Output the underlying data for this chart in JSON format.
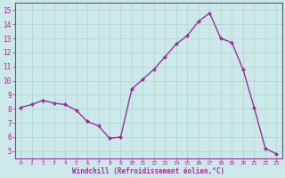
{
  "x": [
    0,
    1,
    2,
    3,
    4,
    5,
    6,
    7,
    8,
    9,
    10,
    11,
    12,
    13,
    14,
    15,
    16,
    17,
    18,
    19,
    20,
    21,
    22,
    23
  ],
  "y": [
    8.1,
    8.3,
    8.6,
    8.4,
    8.3,
    7.9,
    7.1,
    6.8,
    5.9,
    6.0,
    9.4,
    10.1,
    10.8,
    11.7,
    12.6,
    13.2,
    14.2,
    14.8,
    13.0,
    12.7,
    10.8,
    8.1,
    5.2,
    4.8
  ],
  "line_color": "#993399",
  "marker": "D",
  "marker_size": 2.0,
  "line_width": 1.0,
  "bg_color": "#cce8e8",
  "grid_color": "#b0d8d8",
  "xlabel": "Windchill (Refroidissement éolien,°C)",
  "xlabel_color": "#993399",
  "tick_color": "#993399",
  "axis_color": "#993399",
  "ylabel_ticks": [
    5,
    6,
    7,
    8,
    9,
    10,
    11,
    12,
    13,
    14,
    15
  ],
  "xlim": [
    -0.5,
    23.5
  ],
  "ylim": [
    4.5,
    15.5
  ],
  "xticks": [
    0,
    1,
    2,
    3,
    4,
    5,
    6,
    7,
    8,
    9,
    10,
    11,
    12,
    13,
    14,
    15,
    16,
    17,
    18,
    19,
    20,
    21,
    22,
    23
  ],
  "figsize": [
    3.2,
    2.0
  ],
  "dpi": 100
}
